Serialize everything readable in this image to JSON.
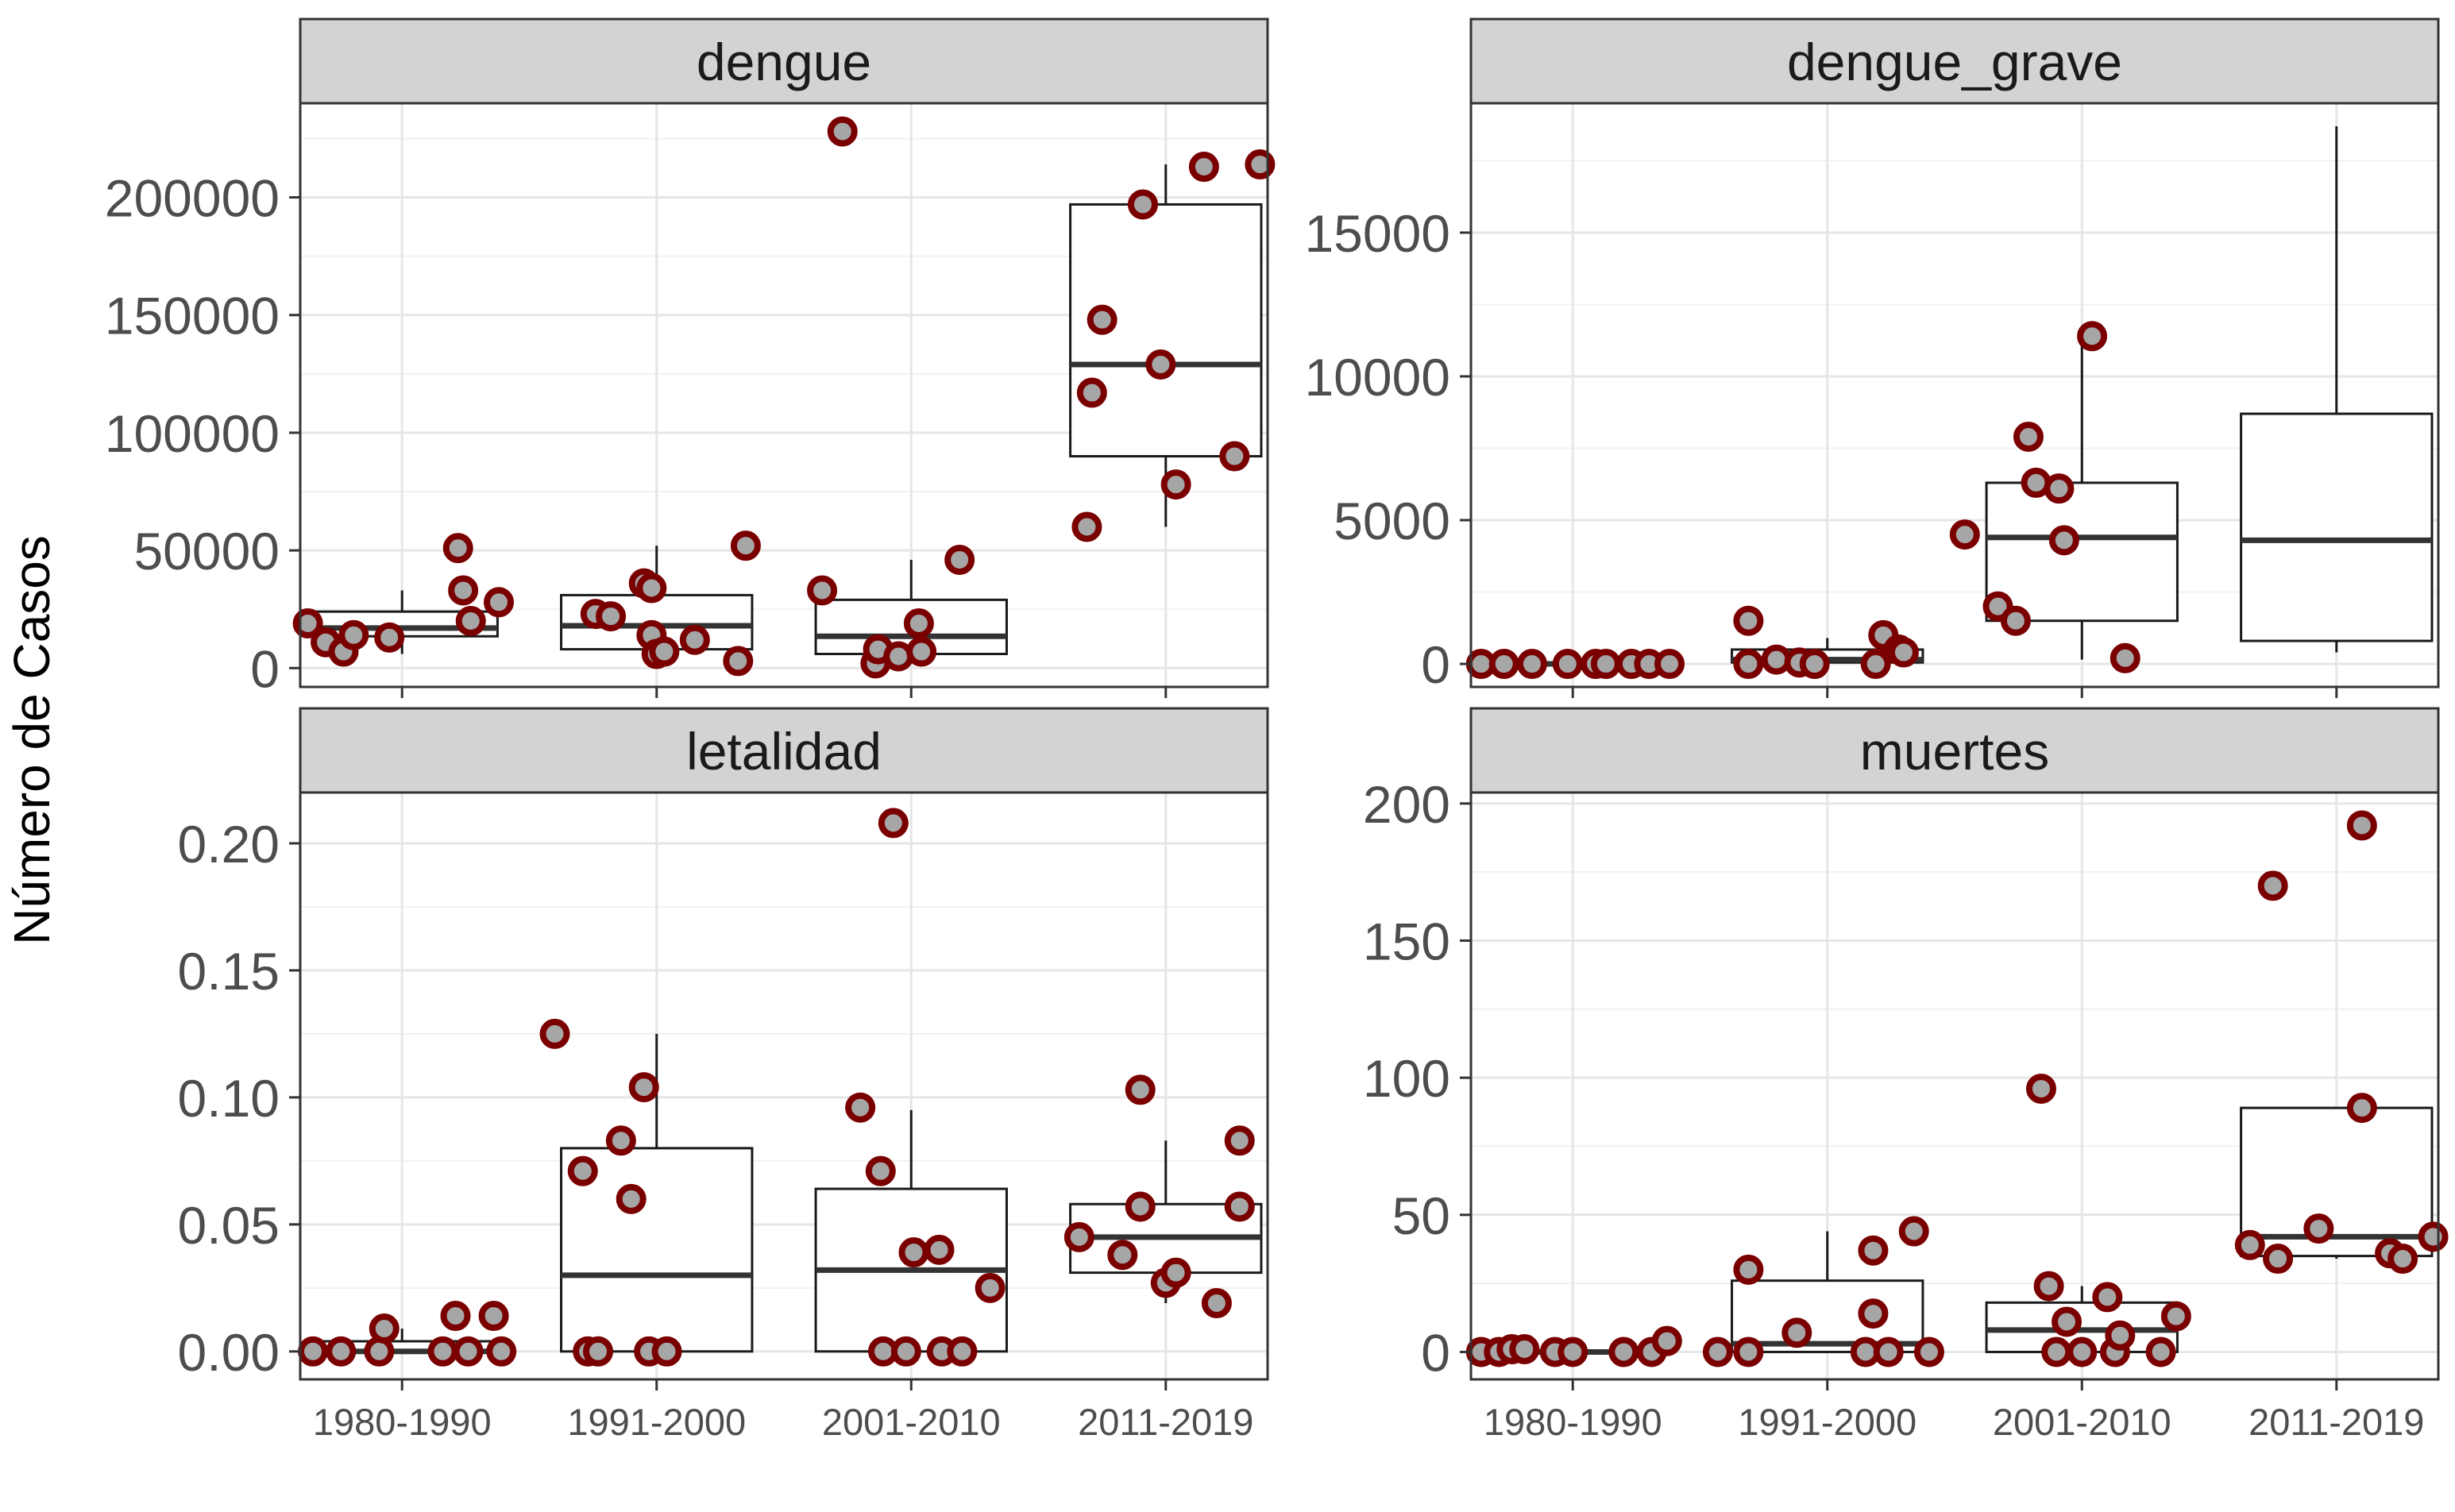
{
  "figure": {
    "ylabel": "Número de Casos",
    "x_categories": [
      "1980-1990",
      "1991-2000",
      "2001-2010",
      "2011-2019"
    ],
    "colors": {
      "point_fill": "#a6a6a6",
      "point_stroke": "#7a0000",
      "strip_fill": "#d3d3d3",
      "strip_border": "#333333",
      "grid_major": "#e6e6e6",
      "grid_minor": "#f1f1f1",
      "panel_border": "#333333",
      "box_stroke": "#1a1a1a",
      "axis_text": "#4d4d4d"
    }
  },
  "chart_data": [
    {
      "type": "box+jitter",
      "facet": "dengue",
      "categories": [
        "1980-1990",
        "1991-2000",
        "2001-2010",
        "2011-2019"
      ],
      "ylim": [
        -8000,
        240000
      ],
      "yticks": [
        0,
        50000,
        100000,
        150000,
        200000
      ],
      "ytick_labels": [
        "0",
        "50000",
        "100000",
        "150000",
        "200000"
      ],
      "boxes": [
        {
          "q1": 13500,
          "median": 17000,
          "q3": 24000,
          "lower": 6000,
          "upper": 33000
        },
        {
          "q1": 8000,
          "median": 18000,
          "q3": 31000,
          "lower": 3000,
          "upper": 52000
        },
        {
          "q1": 6000,
          "median": 13500,
          "q3": 29000,
          "lower": 2000,
          "upper": 46000
        },
        {
          "q1": 90000,
          "median": 129000,
          "q3": 197000,
          "lower": 60000,
          "upper": 214000
        }
      ],
      "points": [
        {
          "group": 0,
          "x": -0.37,
          "y": 19000
        },
        {
          "group": 0,
          "x": -0.3,
          "y": 11000
        },
        {
          "group": 0,
          "x": -0.23,
          "y": 7000
        },
        {
          "group": 0,
          "x": -0.19,
          "y": 14000
        },
        {
          "group": 0,
          "x": -0.05,
          "y": 13000
        },
        {
          "group": 0,
          "x": 0.22,
          "y": 51000
        },
        {
          "group": 0,
          "x": 0.24,
          "y": 33000
        },
        {
          "group": 0,
          "x": 0.27,
          "y": 20000
        },
        {
          "group": 0,
          "x": 0.38,
          "y": 28000
        },
        {
          "group": 1,
          "x": -0.24,
          "y": 23000
        },
        {
          "group": 1,
          "x": -0.18,
          "y": 22000
        },
        {
          "group": 1,
          "x": -0.05,
          "y": 36000
        },
        {
          "group": 1,
          "x": -0.02,
          "y": 34000
        },
        {
          "group": 1,
          "x": -0.02,
          "y": 14000
        },
        {
          "group": 1,
          "x": 0.0,
          "y": 6000
        },
        {
          "group": 1,
          "x": 0.03,
          "y": 7000
        },
        {
          "group": 1,
          "x": 0.15,
          "y": 12000
        },
        {
          "group": 1,
          "x": 0.32,
          "y": 3000
        },
        {
          "group": 1,
          "x": 0.35,
          "y": 52000
        },
        {
          "group": 2,
          "x": -0.27,
          "y": 228000
        },
        {
          "group": 2,
          "x": -0.35,
          "y": 33000
        },
        {
          "group": 2,
          "x": -0.14,
          "y": 2000
        },
        {
          "group": 2,
          "x": -0.13,
          "y": 8000
        },
        {
          "group": 2,
          "x": -0.05,
          "y": 5000
        },
        {
          "group": 2,
          "x": 0.03,
          "y": 19000
        },
        {
          "group": 2,
          "x": 0.04,
          "y": 7000
        },
        {
          "group": 2,
          "x": 0.19,
          "y": 46000
        },
        {
          "group": 3,
          "x": -0.31,
          "y": 60000
        },
        {
          "group": 3,
          "x": -0.29,
          "y": 117000
        },
        {
          "group": 3,
          "x": -0.25,
          "y": 148000
        },
        {
          "group": 3,
          "x": -0.09,
          "y": 197000
        },
        {
          "group": 3,
          "x": -0.02,
          "y": 129000
        },
        {
          "group": 3,
          "x": 0.04,
          "y": 78000
        },
        {
          "group": 3,
          "x": 0.15,
          "y": 213000
        },
        {
          "group": 3,
          "x": 0.27,
          "y": 90000
        },
        {
          "group": 3,
          "x": 0.37,
          "y": 214000
        }
      ]
    },
    {
      "type": "box+jitter",
      "facet": "dengue_grave",
      "categories": [
        "1980-1990",
        "1991-2000",
        "2001-2010",
        "2011-2019"
      ],
      "ylim": [
        -800,
        19500
      ],
      "yticks": [
        0,
        5000,
        10000,
        15000
      ],
      "ytick_labels": [
        "0",
        "5000",
        "10000",
        "15000"
      ],
      "boxes": [
        {
          "q1": 0,
          "median": 0,
          "q3": 0,
          "lower": 0,
          "upper": 0
        },
        {
          "q1": 50,
          "median": 150,
          "q3": 500,
          "lower": 0,
          "upper": 900
        },
        {
          "q1": 1500,
          "median": 4400,
          "q3": 6300,
          "lower": 150,
          "upper": 11300
        },
        {
          "q1": 800,
          "median": 4300,
          "q3": 8700,
          "lower": 400,
          "upper": 18700
        }
      ],
      "points": [
        {
          "group": 0,
          "x": -0.36,
          "y": 0
        },
        {
          "group": 0,
          "x": -0.27,
          "y": 0
        },
        {
          "group": 0,
          "x": -0.16,
          "y": 0
        },
        {
          "group": 0,
          "x": -0.02,
          "y": 0
        },
        {
          "group": 0,
          "x": 0.09,
          "y": 0
        },
        {
          "group": 0,
          "x": 0.13,
          "y": 0
        },
        {
          "group": 0,
          "x": 0.23,
          "y": 0
        },
        {
          "group": 0,
          "x": 0.3,
          "y": 0
        },
        {
          "group": 0,
          "x": 0.38,
          "y": 0
        },
        {
          "group": 1,
          "x": -0.31,
          "y": 1500
        },
        {
          "group": 1,
          "x": -0.31,
          "y": 0
        },
        {
          "group": 1,
          "x": -0.2,
          "y": 150
        },
        {
          "group": 1,
          "x": -0.11,
          "y": 50
        },
        {
          "group": 1,
          "x": -0.05,
          "y": 0
        },
        {
          "group": 1,
          "x": 0.19,
          "y": 0
        },
        {
          "group": 1,
          "x": 0.22,
          "y": 1000
        },
        {
          "group": 1,
          "x": 0.28,
          "y": 500
        },
        {
          "group": 1,
          "x": 0.3,
          "y": 400
        },
        {
          "group": 2,
          "x": -0.46,
          "y": 4500
        },
        {
          "group": 2,
          "x": -0.33,
          "y": 2000
        },
        {
          "group": 2,
          "x": -0.26,
          "y": 1500
        },
        {
          "group": 2,
          "x": -0.21,
          "y": 7900
        },
        {
          "group": 2,
          "x": -0.18,
          "y": 6300
        },
        {
          "group": 2,
          "x": -0.09,
          "y": 6100
        },
        {
          "group": 2,
          "x": -0.07,
          "y": 4300
        },
        {
          "group": 2,
          "x": 0.04,
          "y": 11400
        },
        {
          "group": 2,
          "x": 0.17,
          "y": 200
        }
      ]
    },
    {
      "type": "box+jitter",
      "facet": "letalidad",
      "categories": [
        "1980-1990",
        "1991-2000",
        "2001-2010",
        "2011-2019"
      ],
      "ylim": [
        -0.011,
        0.22
      ],
      "yticks": [
        0.0,
        0.05,
        0.1,
        0.15,
        0.2
      ],
      "ytick_labels": [
        "0.00",
        "0.05",
        "0.10",
        "0.15",
        "0.20"
      ],
      "boxes": [
        {
          "q1": 0,
          "median": 0,
          "q3": 0.004,
          "lower": 0,
          "upper": 0.009
        },
        {
          "q1": 0,
          "median": 0.03,
          "q3": 0.08,
          "lower": 0,
          "upper": 0.125
        },
        {
          "q1": 0,
          "median": 0.032,
          "q3": 0.064,
          "lower": 0,
          "upper": 0.095
        },
        {
          "q1": 0.031,
          "median": 0.045,
          "q3": 0.058,
          "lower": 0.019,
          "upper": 0.083
        }
      ],
      "points": [
        {
          "group": 0,
          "x": -0.35,
          "y": 0
        },
        {
          "group": 0,
          "x": -0.24,
          "y": 0
        },
        {
          "group": 0,
          "x": -0.09,
          "y": 0
        },
        {
          "group": 0,
          "x": -0.07,
          "y": 0.009
        },
        {
          "group": 0,
          "x": 0.16,
          "y": 0
        },
        {
          "group": 0,
          "x": 0.21,
          "y": 0.014
        },
        {
          "group": 0,
          "x": 0.26,
          "y": 0
        },
        {
          "group": 0,
          "x": 0.36,
          "y": 0.014
        },
        {
          "group": 0,
          "x": 0.39,
          "y": 0
        },
        {
          "group": 1,
          "x": -0.4,
          "y": 0.125
        },
        {
          "group": 1,
          "x": -0.29,
          "y": 0.071
        },
        {
          "group": 1,
          "x": -0.27,
          "y": 0
        },
        {
          "group": 1,
          "x": -0.23,
          "y": 0
        },
        {
          "group": 1,
          "x": -0.14,
          "y": 0.083
        },
        {
          "group": 1,
          "x": -0.1,
          "y": 0.06
        },
        {
          "group": 1,
          "x": -0.05,
          "y": 0.104
        },
        {
          "group": 1,
          "x": -0.03,
          "y": 0
        },
        {
          "group": 1,
          "x": 0.04,
          "y": 0
        },
        {
          "group": 2,
          "x": -0.2,
          "y": 0.096
        },
        {
          "group": 2,
          "x": -0.12,
          "y": 0.071
        },
        {
          "group": 2,
          "x": -0.11,
          "y": 0
        },
        {
          "group": 2,
          "x": -0.07,
          "y": 0.208
        },
        {
          "group": 2,
          "x": -0.02,
          "y": 0
        },
        {
          "group": 2,
          "x": 0.01,
          "y": 0.039
        },
        {
          "group": 2,
          "x": 0.11,
          "y": 0.04
        },
        {
          "group": 2,
          "x": 0.12,
          "y": 0
        },
        {
          "group": 2,
          "x": 0.2,
          "y": 0
        },
        {
          "group": 2,
          "x": 0.31,
          "y": 0.025
        },
        {
          "group": 3,
          "x": -0.34,
          "y": 0.045
        },
        {
          "group": 3,
          "x": -0.17,
          "y": 0.038
        },
        {
          "group": 3,
          "x": -0.1,
          "y": 0.103
        },
        {
          "group": 3,
          "x": -0.1,
          "y": 0.057
        },
        {
          "group": 3,
          "x": 0.0,
          "y": 0.027
        },
        {
          "group": 3,
          "x": 0.04,
          "y": 0.031
        },
        {
          "group": 3,
          "x": 0.2,
          "y": 0.019
        },
        {
          "group": 3,
          "x": 0.29,
          "y": 0.083
        },
        {
          "group": 3,
          "x": 0.29,
          "y": 0.057
        }
      ]
    },
    {
      "type": "box+jitter",
      "facet": "muertes",
      "categories": [
        "1980-1990",
        "1991-2000",
        "2001-2010",
        "2011-2019"
      ],
      "ylim": [
        -10,
        204
      ],
      "yticks": [
        0,
        50,
        100,
        150,
        200
      ],
      "ytick_labels": [
        "0",
        "50",
        "100",
        "150",
        "200"
      ],
      "boxes": [
        {
          "q1": 0,
          "median": 0,
          "q3": 0,
          "lower": 0,
          "upper": 0
        },
        {
          "q1": 0,
          "median": 3,
          "q3": 26,
          "lower": 0,
          "upper": 44
        },
        {
          "q1": 0,
          "median": 8,
          "q3": 18,
          "lower": 0,
          "upper": 24
        },
        {
          "q1": 35,
          "median": 42,
          "q3": 89,
          "lower": 34,
          "upper": 89
        }
      ],
      "points": [
        {
          "group": 0,
          "x": -0.36,
          "y": 0
        },
        {
          "group": 0,
          "x": -0.29,
          "y": 0
        },
        {
          "group": 0,
          "x": -0.24,
          "y": 1
        },
        {
          "group": 0,
          "x": -0.19,
          "y": 1
        },
        {
          "group": 0,
          "x": -0.07,
          "y": 0
        },
        {
          "group": 0,
          "x": 0.0,
          "y": 0
        },
        {
          "group": 0,
          "x": 0.2,
          "y": 0
        },
        {
          "group": 0,
          "x": 0.31,
          "y": 0
        },
        {
          "group": 0,
          "x": 0.37,
          "y": 4
        },
        {
          "group": 1,
          "x": -0.43,
          "y": 0
        },
        {
          "group": 1,
          "x": -0.31,
          "y": 0
        },
        {
          "group": 1,
          "x": -0.31,
          "y": 30
        },
        {
          "group": 1,
          "x": -0.12,
          "y": 7
        },
        {
          "group": 1,
          "x": 0.15,
          "y": 0
        },
        {
          "group": 1,
          "x": 0.18,
          "y": 14
        },
        {
          "group": 1,
          "x": 0.18,
          "y": 37
        },
        {
          "group": 1,
          "x": 0.24,
          "y": 0
        },
        {
          "group": 1,
          "x": 0.34,
          "y": 44
        },
        {
          "group": 1,
          "x": 0.4,
          "y": 0
        },
        {
          "group": 2,
          "x": -0.16,
          "y": 96
        },
        {
          "group": 2,
          "x": -0.13,
          "y": 24
        },
        {
          "group": 2,
          "x": -0.1,
          "y": 0
        },
        {
          "group": 2,
          "x": -0.06,
          "y": 11
        },
        {
          "group": 2,
          "x": 0.0,
          "y": 0
        },
        {
          "group": 2,
          "x": 0.1,
          "y": 20
        },
        {
          "group": 2,
          "x": 0.13,
          "y": 0
        },
        {
          "group": 2,
          "x": 0.15,
          "y": 6
        },
        {
          "group": 2,
          "x": 0.31,
          "y": 0
        },
        {
          "group": 2,
          "x": 0.37,
          "y": 13
        },
        {
          "group": 3,
          "x": -0.34,
          "y": 39
        },
        {
          "group": 3,
          "x": -0.25,
          "y": 170
        },
        {
          "group": 3,
          "x": -0.23,
          "y": 34
        },
        {
          "group": 3,
          "x": -0.07,
          "y": 45
        },
        {
          "group": 3,
          "x": 0.1,
          "y": 192
        },
        {
          "group": 3,
          "x": 0.1,
          "y": 89
        },
        {
          "group": 3,
          "x": 0.21,
          "y": 36
        },
        {
          "group": 3,
          "x": 0.26,
          "y": 34
        },
        {
          "group": 3,
          "x": 0.38,
          "y": 42
        }
      ]
    }
  ]
}
